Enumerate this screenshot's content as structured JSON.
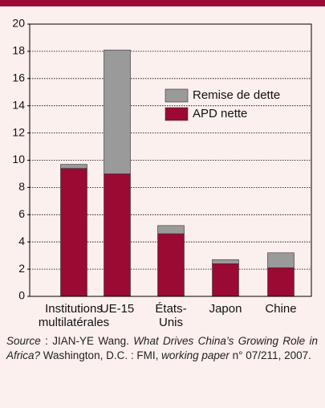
{
  "chart_data": {
    "type": "stacked_bar",
    "categories": [
      [
        "Institutions",
        "multilatérales"
      ],
      [
        "UE-15"
      ],
      [
        "États-",
        "Unis"
      ],
      [
        "Japon"
      ],
      [
        "Chine"
      ]
    ],
    "series": [
      {
        "name": "APD nette",
        "color": "#9b0a33",
        "values": [
          9.4,
          9.0,
          4.6,
          2.4,
          2.1
        ]
      },
      {
        "name": "Remise de dette",
        "color": "#9a9a9a",
        "values": [
          0.3,
          9.1,
          0.6,
          0.3,
          1.1
        ]
      }
    ],
    "ylim": [
      0,
      20
    ],
    "yticks": [
      0,
      2,
      4,
      6,
      8,
      10,
      12,
      14,
      16,
      18,
      20
    ],
    "grid": true,
    "source": [
      {
        "text": "Source",
        "italic": true
      },
      {
        "text": " : JIAN-YE Wang. "
      },
      {
        "text": "What Drives China’s Growing Role in Africa?",
        "italic": true
      },
      {
        "text": " Washington, D.C. : FMI, "
      },
      {
        "text": "working paper",
        "italic": true
      },
      {
        "text": " n° 07/211, 2007."
      }
    ]
  }
}
